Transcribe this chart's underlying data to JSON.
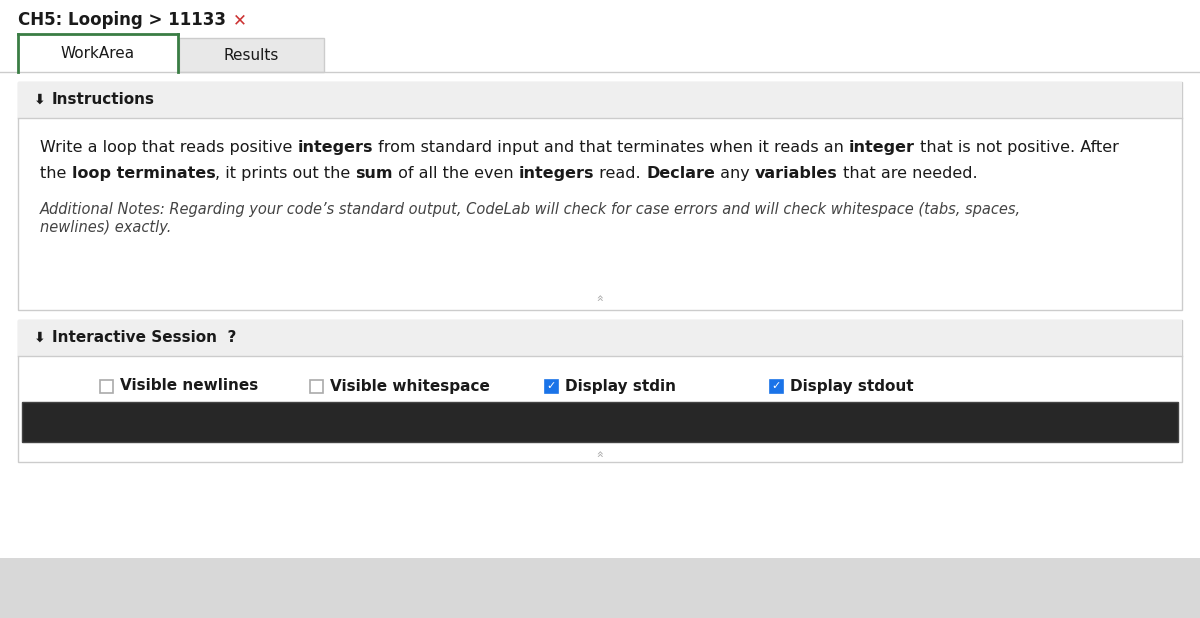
{
  "title_text": "CH5: Looping > 11133",
  "title_x_mark": "✕",
  "tab1": "WorkArea",
  "tab2": "Results",
  "section1_header": "⨀ Instructions",
  "section2_header": "⨀ Interactive Session  ?",
  "line1_segments": [
    [
      "Write a loop that reads positive ",
      false,
      false
    ],
    [
      "integers",
      true,
      false
    ],
    [
      " from standard input and that terminates when it reads an ",
      false,
      false
    ],
    [
      "integer",
      true,
      false
    ],
    [
      " that is not positive. After",
      false,
      false
    ]
  ],
  "line2_segments": [
    [
      "the ",
      false,
      false
    ],
    [
      "loop terminates",
      true,
      false
    ],
    [
      ", it prints out the ",
      false,
      false
    ],
    [
      "sum",
      true,
      false
    ],
    [
      " of all the even ",
      false,
      false
    ],
    [
      "integers",
      true,
      false
    ],
    [
      " read. ",
      false,
      false
    ],
    [
      "Declare",
      true,
      false
    ],
    [
      " any ",
      false,
      false
    ],
    [
      "variables",
      true,
      false
    ],
    [
      " that are needed.",
      false,
      false
    ]
  ],
  "additional_notes_line1": "Additional Notes: Regarding your code’s standard output, CodeLab will check for case errors and will check whitespace (tabs, spaces,",
  "additional_notes_line2": "newlines) exactly.",
  "check1_label": "Visible newlines",
  "check2_label": "Visible whitespace",
  "check3_label": "Display stdin",
  "check4_label": "Display stdout",
  "bg_page": "#f0f0f0",
  "bg_white": "#ffffff",
  "bg_header": "#efefef",
  "bg_gray_tab": "#e8e8e8",
  "border_color": "#cccccc",
  "green_border": "#3a7d44",
  "terminal_bg": "#272727",
  "blue_check": "#1a73e8",
  "text_dark": "#1a1a1a",
  "text_gray": "#555555",
  "red_x": "#cc3333",
  "bottom_gray": "#d8d8d8",
  "chevron_color": "#aaaaaa",
  "note_color": "#444444"
}
